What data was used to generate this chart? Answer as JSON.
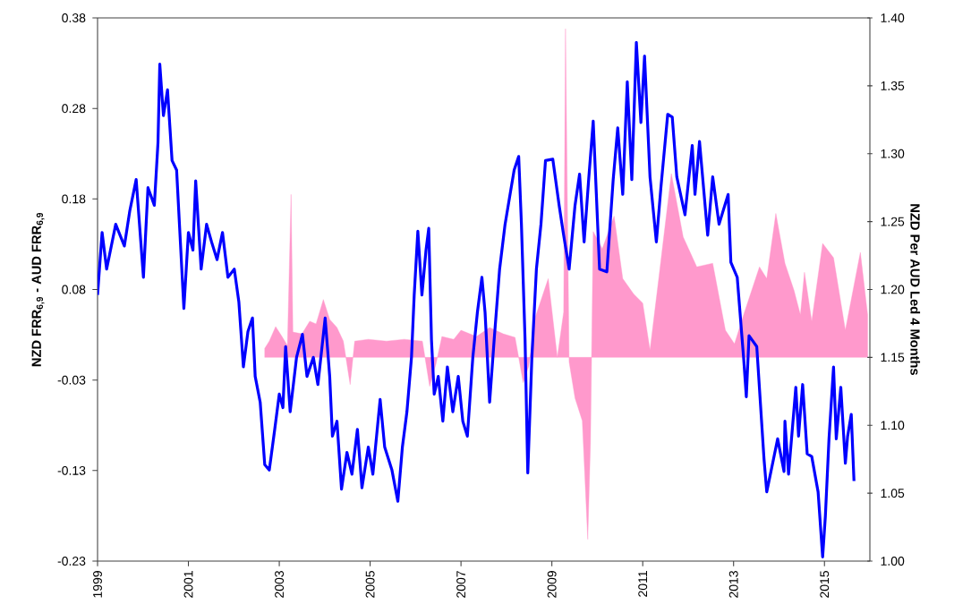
{
  "chart_data": {
    "type": "line",
    "ylabel": "NZD FRR$_{6,9}$ - AUD FRR$_{6,9}$",
    "y2label": "NZD Per AUD Led 4 Months",
    "xlim": [
      1999,
      2016
    ],
    "xticks": [
      1999,
      2001,
      2003,
      2005,
      2007,
      2009,
      2011,
      2013,
      2015
    ],
    "ylim": [
      -0.225,
      0.375
    ],
    "yticks": [
      {
        "value": -0.225,
        "label": "-0.23"
      },
      {
        "value": -0.125,
        "label": "-0.13"
      },
      {
        "value": -0.025,
        "label": "-0.03"
      },
      {
        "value": 0.075,
        "label": "0.08"
      },
      {
        "value": 0.175,
        "label": "0.18"
      },
      {
        "value": 0.275,
        "label": "0.28"
      },
      {
        "value": 0.375,
        "label": "0.38"
      }
    ],
    "y2lim": [
      1.0,
      1.4
    ],
    "y2ticks": [
      {
        "value": 1.0,
        "label": "1.00"
      },
      {
        "value": 1.05,
        "label": "1.05"
      },
      {
        "value": 1.1,
        "label": "1.10"
      },
      {
        "value": 1.15,
        "label": "1.15"
      },
      {
        "value": 1.2,
        "label": "1.20"
      },
      {
        "value": 1.25,
        "label": "1.25"
      },
      {
        "value": 1.3,
        "label": "1.30"
      },
      {
        "value": 1.35,
        "label": "1.35"
      },
      {
        "value": 1.4,
        "label": "1.40"
      }
    ],
    "series": [
      {
        "type": "area",
        "color": "#ff99cc",
        "x": [
          2002.68,
          2002.78,
          2002.92,
          2003.06,
          2003.18,
          2003.26,
          2003.3,
          2003.5,
          2003.67,
          2003.81,
          2003.97,
          2004.11,
          2004.27,
          2004.41,
          2004.56,
          2004.66,
          2004.96,
          2005.36,
          2005.75,
          2006.15,
          2006.31,
          2006.45,
          2006.58,
          2006.84,
          2007.0,
          2007.34,
          2007.63,
          2007.93,
          2008.19,
          2008.37,
          2008.49,
          2008.64,
          2008.92,
          2009.12,
          2009.26,
          2009.3,
          2009.38,
          2009.51,
          2009.67,
          2009.79,
          2009.85,
          2009.91,
          2010.11,
          2010.37,
          2010.56,
          2010.8,
          2011.0,
          2011.16,
          2011.36,
          2011.63,
          2011.89,
          2012.19,
          2012.54,
          2012.82,
          2013.02,
          2013.24,
          2013.57,
          2013.73,
          2013.93,
          2014.13,
          2014.33,
          2014.47,
          2014.56,
          2014.72,
          2014.96,
          2015.2,
          2015.46,
          2015.79,
          2015.95
        ],
        "values": [
          0.01,
          0.018,
          0.034,
          0.023,
          0.013,
          0.18,
          0.028,
          0.026,
          0.04,
          0.037,
          0.064,
          0.042,
          0.033,
          0.018,
          -0.03,
          0.018,
          0.02,
          0.018,
          0.02,
          0.018,
          -0.032,
          -0.007,
          0.023,
          0.02,
          0.03,
          0.023,
          0.033,
          0.026,
          0.022,
          -0.028,
          -0.01,
          0.045,
          0.087,
          0.0,
          0.05,
          0.363,
          -0.005,
          -0.045,
          -0.07,
          -0.201,
          -0.094,
          0.139,
          0.12,
          0.156,
          0.087,
          0.07,
          0.06,
          0.008,
          0.09,
          0.203,
          0.133,
          0.1,
          0.104,
          0.03,
          0.015,
          0.05,
          0.1,
          0.087,
          0.159,
          0.104,
          0.074,
          0.047,
          0.094,
          0.04,
          0.126,
          0.11,
          0.03,
          0.116,
          0.047
        ]
      },
      {
        "axis": "y2",
        "color": "#0000ff",
        "x": [
          1999.0,
          1999.1,
          1999.2,
          1999.4,
          1999.59,
          1999.71,
          1999.85,
          2000.01,
          2000.11,
          2000.25,
          2000.33,
          2000.37,
          2000.45,
          2000.54,
          2000.64,
          2000.74,
          2000.9,
          2001.0,
          2001.1,
          2001.16,
          2001.28,
          2001.4,
          2001.51,
          2001.63,
          2001.75,
          2001.87,
          2002.01,
          2002.11,
          2002.21,
          2002.31,
          2002.41,
          2002.47,
          2002.58,
          2002.68,
          2002.78,
          2002.9,
          2003.0,
          2003.08,
          2003.14,
          2003.24,
          2003.38,
          2003.51,
          2003.61,
          2003.75,
          2003.85,
          2004.01,
          2004.11,
          2004.17,
          2004.27,
          2004.37,
          2004.49,
          2004.6,
          2004.72,
          2004.82,
          2004.96,
          2005.06,
          2005.22,
          2005.32,
          2005.48,
          2005.61,
          2005.71,
          2005.81,
          2005.91,
          2005.97,
          2006.05,
          2006.14,
          2006.23,
          2006.29,
          2006.35,
          2006.41,
          2006.5,
          2006.6,
          2006.7,
          2006.82,
          2006.94,
          2007.04,
          2007.14,
          2007.26,
          2007.36,
          2007.46,
          2007.53,
          2007.63,
          2007.73,
          2007.85,
          2007.97,
          2008.07,
          2008.17,
          2008.27,
          2008.33,
          2008.41,
          2008.47,
          2008.56,
          2008.66,
          2008.76,
          2008.86,
          2009.02,
          2009.16,
          2009.25,
          2009.38,
          2009.51,
          2009.61,
          2009.71,
          2009.81,
          2009.91,
          2010.05,
          2010.21,
          2010.35,
          2010.45,
          2010.56,
          2010.66,
          2010.76,
          2010.86,
          2010.96,
          2011.04,
          2011.16,
          2011.3,
          2011.4,
          2011.55,
          2011.65,
          2011.75,
          2011.93,
          2012.09,
          2012.15,
          2012.25,
          2012.43,
          2012.54,
          2012.68,
          2012.88,
          2012.94,
          2013.08,
          2013.22,
          2013.28,
          2013.34,
          2013.51,
          2013.67,
          2013.73,
          2013.97,
          2014.11,
          2014.13,
          2014.21,
          2014.37,
          2014.43,
          2014.52,
          2014.62,
          2014.72,
          2014.86,
          2014.96,
          2015.02,
          2015.1,
          2015.2,
          2015.26,
          2015.36,
          2015.46,
          2015.51,
          2015.59,
          2015.65
        ],
        "values": [
          1.196,
          1.242,
          1.215,
          1.248,
          1.232,
          1.258,
          1.281,
          1.209,
          1.275,
          1.262,
          1.308,
          1.366,
          1.328,
          1.347,
          1.295,
          1.288,
          1.186,
          1.242,
          1.229,
          1.28,
          1.215,
          1.248,
          1.235,
          1.222,
          1.242,
          1.209,
          1.215,
          1.191,
          1.143,
          1.169,
          1.179,
          1.136,
          1.117,
          1.071,
          1.067,
          1.097,
          1.123,
          1.113,
          1.158,
          1.11,
          1.15,
          1.167,
          1.136,
          1.15,
          1.13,
          1.179,
          1.136,
          1.092,
          1.103,
          1.053,
          1.08,
          1.064,
          1.097,
          1.054,
          1.084,
          1.064,
          1.119,
          1.084,
          1.067,
          1.044,
          1.084,
          1.11,
          1.15,
          1.196,
          1.243,
          1.196,
          1.229,
          1.245,
          1.163,
          1.123,
          1.136,
          1.103,
          1.143,
          1.11,
          1.136,
          1.103,
          1.092,
          1.15,
          1.183,
          1.209,
          1.183,
          1.117,
          1.163,
          1.215,
          1.248,
          1.268,
          1.288,
          1.298,
          1.248,
          1.163,
          1.065,
          1.15,
          1.215,
          1.248,
          1.295,
          1.296,
          1.262,
          1.242,
          1.215,
          1.262,
          1.285,
          1.235,
          1.281,
          1.324,
          1.215,
          1.213,
          1.281,
          1.319,
          1.27,
          1.353,
          1.281,
          1.382,
          1.323,
          1.372,
          1.283,
          1.235,
          1.275,
          1.329,
          1.327,
          1.283,
          1.255,
          1.306,
          1.27,
          1.309,
          1.24,
          1.283,
          1.248,
          1.27,
          1.22,
          1.209,
          1.15,
          1.121,
          1.166,
          1.158,
          1.075,
          1.051,
          1.09,
          1.066,
          1.103,
          1.064,
          1.128,
          1.092,
          1.13,
          1.079,
          1.077,
          1.051,
          1.003,
          1.033,
          1.09,
          1.143,
          1.09,
          1.128,
          1.072,
          1.092,
          1.108,
          1.059
        ]
      }
    ]
  }
}
